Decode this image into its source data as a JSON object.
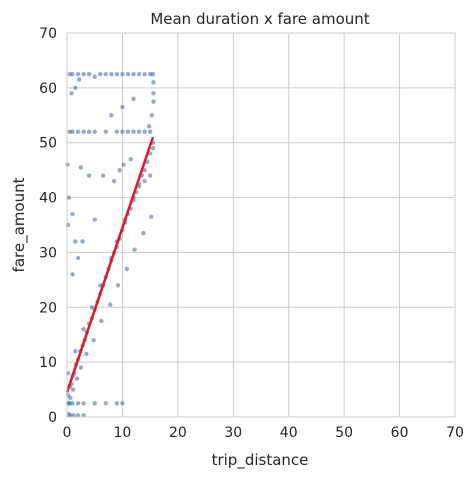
{
  "chart_data": {
    "type": "scatter",
    "title": "Mean duration x fare amount",
    "xlabel": "trip_distance",
    "ylabel": "fare_amount",
    "xlim": [
      0,
      70
    ],
    "ylim": [
      0,
      70
    ],
    "xticks": [
      0,
      10,
      20,
      30,
      40,
      50,
      60,
      70
    ],
    "yticks": [
      0,
      10,
      20,
      30,
      40,
      50,
      60,
      70
    ],
    "grid": true,
    "legend": "none",
    "point_color": "#4c72b0",
    "line_color": "#e31a1c",
    "series": [
      {
        "kind": "points",
        "x": [
          0.2,
          0.5,
          0.8,
          1.0,
          1.3,
          1.6,
          2.0,
          2.4,
          2.8,
          3.2,
          3.6,
          4.0,
          4.5,
          5.0,
          5.5,
          6.0,
          6.5,
          7.0,
          7.5,
          8.0,
          8.5,
          9.0,
          9.5,
          10.0,
          10.5,
          11.0,
          11.5,
          12.0,
          12.5,
          13.0,
          13.5,
          14.0,
          14.5,
          15.0,
          15.5,
          0.3,
          0.6,
          1.1,
          1.8,
          2.5,
          3.5,
          4.8,
          6.2,
          7.8,
          9.2,
          10.8,
          12.2,
          13.8,
          15.2,
          0.2,
          1.5,
          3.0,
          4.5,
          6.0,
          8.0,
          9.0,
          10.5,
          12.0,
          13.0,
          14.0,
          15.0,
          0.5,
          1.0,
          2.0,
          2.2,
          3.0,
          4.0,
          5.0,
          6.0,
          7.0,
          8.0,
          9.0,
          10.0,
          11.0,
          12.0,
          13.0,
          14.0,
          15.0,
          15.5,
          0.5,
          1.0,
          2.0,
          3.0,
          4.0,
          5.0,
          7.0,
          9.0,
          10.0,
          11.0,
          12.0,
          13.0,
          14.0,
          15.0,
          0.8,
          1.5,
          8.0,
          10.0,
          12.0,
          2.5,
          4.0,
          6.5,
          9.5,
          11.5,
          14.8,
          15.3,
          15.6,
          15.6,
          15.6,
          15.5,
          0.1,
          0.3,
          0.2,
          1.0,
          1.5,
          5.0,
          8.5,
          10.2,
          0.2,
          0.5,
          1.0,
          2.0,
          3.0,
          5.0,
          7.0,
          9.0,
          10.0,
          0.3,
          0.6,
          1.2,
          2.0,
          3.0,
          1.0,
          2.0,
          2.8
        ],
        "y": [
          4.0,
          5.5,
          6.0,
          7.5,
          8.0,
          9.5,
          10.5,
          12.0,
          13.0,
          14.0,
          15.5,
          17.0,
          18.0,
          19.5,
          21.0,
          22.5,
          24.0,
          25.5,
          27.0,
          28.5,
          30.0,
          31.0,
          32.5,
          34.0,
          35.5,
          37.0,
          38.0,
          39.5,
          41.0,
          42.5,
          44.0,
          45.0,
          46.5,
          48.0,
          49.0,
          2.5,
          3.5,
          5.0,
          7.0,
          9.0,
          11.5,
          14.0,
          17.5,
          20.5,
          24.0,
          27.0,
          30.5,
          33.5,
          36.5,
          8.0,
          12.0,
          16.0,
          20.0,
          24.0,
          29.0,
          32.0,
          36.0,
          40.0,
          42.0,
          43.0,
          44.0,
          62.5,
          62.5,
          62.5,
          61.5,
          62.5,
          62.5,
          62.0,
          62.5,
          62.5,
          62.5,
          62.5,
          62.5,
          62.5,
          62.5,
          62.5,
          62.5,
          62.5,
          62.5,
          52.0,
          52.0,
          52.0,
          52.0,
          52.0,
          52.0,
          52.0,
          52.0,
          52.0,
          52.0,
          52.0,
          52.0,
          52.0,
          52.0,
          59.0,
          60.0,
          55.0,
          56.5,
          58.0,
          45.5,
          44.0,
          44.0,
          45.0,
          47.0,
          53.0,
          55.0,
          57.5,
          59.0,
          61.0,
          50.0,
          46.0,
          40.0,
          35.0,
          37.0,
          32.0,
          36.0,
          43.0,
          46.0,
          2.5,
          2.5,
          2.5,
          2.5,
          2.5,
          2.5,
          2.5,
          2.5,
          2.5,
          0.5,
          0.3,
          0.3,
          0.3,
          0.3,
          26.0,
          29.0,
          32.0
        ]
      },
      {
        "kind": "regression_line",
        "x": [
          0,
          15.5
        ],
        "y": [
          4.5,
          51.0
        ]
      }
    ]
  }
}
